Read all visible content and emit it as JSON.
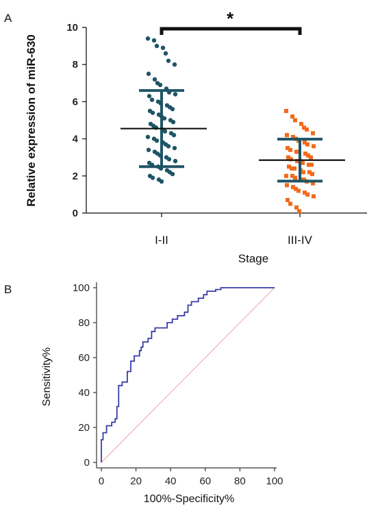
{
  "chart_data": [
    {
      "type": "scatter",
      "panel_label": "A",
      "ylabel": "Relative expression of miR-630",
      "xlabel": "Stage",
      "categories": [
        "I-II",
        "III-IV"
      ],
      "ylim": [
        0,
        10
      ],
      "yticks": [
        "0",
        "2",
        "4",
        "6",
        "8",
        "10"
      ],
      "significance": "*",
      "series": [
        {
          "category": "I-II",
          "color": "#1e5566",
          "mean": 4.55,
          "sd_upper": 6.6,
          "sd_lower": 2.5,
          "values": [
            9.4,
            9.3,
            9.0,
            8.9,
            8.6,
            8.2,
            8.0,
            7.5,
            7.2,
            7.0,
            6.9,
            6.7,
            6.5,
            6.4,
            6.3,
            6.1,
            6.0,
            5.9,
            5.8,
            5.7,
            5.6,
            5.5,
            5.4,
            5.3,
            5.2,
            5.1,
            5.0,
            4.9,
            4.8,
            4.7,
            4.6,
            4.5,
            4.4,
            4.3,
            4.2,
            4.1,
            4.0,
            3.9,
            3.8,
            3.7,
            3.6,
            3.5,
            3.4,
            3.3,
            3.2,
            3.1,
            3.0,
            2.9,
            2.8,
            2.7,
            2.6,
            2.5,
            2.4,
            2.3,
            2.2,
            2.1,
            2.0,
            1.9,
            1.8,
            1.7
          ]
        },
        {
          "category": "III-IV",
          "color": "#f26a1b",
          "mean": 2.85,
          "sd_upper": 3.98,
          "sd_lower": 1.72,
          "values": [
            5.5,
            5.2,
            5.0,
            4.8,
            4.6,
            4.5,
            4.3,
            4.2,
            4.1,
            4.0,
            3.9,
            3.8,
            3.7,
            3.6,
            3.5,
            3.4,
            3.3,
            3.3,
            3.2,
            3.1,
            3.0,
            3.0,
            2.9,
            2.8,
            2.8,
            2.7,
            2.6,
            2.6,
            2.5,
            2.4,
            2.4,
            2.3,
            2.2,
            2.2,
            2.1,
            2.0,
            2.0,
            1.9,
            1.8,
            1.8,
            1.7,
            1.6,
            1.5,
            1.4,
            1.3,
            1.2,
            1.1,
            1.0,
            0.9,
            0.7,
            0.5,
            0.3,
            0.1
          ]
        }
      ]
    },
    {
      "type": "line",
      "panel_label": "B",
      "xlabel": "100%-Specificity%",
      "ylabel": "Sensitivity%",
      "xlim": [
        0,
        100
      ],
      "ylim": [
        0,
        100
      ],
      "xticks": [
        "0",
        "20",
        "40",
        "60",
        "80",
        "100"
      ],
      "yticks": [
        "0",
        "20",
        "40",
        "60",
        "80",
        "100"
      ],
      "roc_color": "#3a3aa8",
      "reference_color": "#e8a0a8",
      "roc_points": [
        [
          0,
          0
        ],
        [
          0,
          13
        ],
        [
          1,
          13
        ],
        [
          1,
          17
        ],
        [
          3,
          17
        ],
        [
          3,
          21
        ],
        [
          6,
          21
        ],
        [
          6,
          23
        ],
        [
          8,
          23
        ],
        [
          8,
          25
        ],
        [
          9,
          25
        ],
        [
          9,
          32
        ],
        [
          10,
          32
        ],
        [
          10,
          44
        ],
        [
          12,
          44
        ],
        [
          12,
          46
        ],
        [
          15,
          46
        ],
        [
          15,
          52
        ],
        [
          17,
          52
        ],
        [
          17,
          58
        ],
        [
          19,
          58
        ],
        [
          19,
          61
        ],
        [
          22,
          61
        ],
        [
          22,
          64
        ],
        [
          23,
          64
        ],
        [
          23,
          66
        ],
        [
          24,
          66
        ],
        [
          24,
          69
        ],
        [
          27,
          69
        ],
        [
          27,
          71
        ],
        [
          29,
          71
        ],
        [
          29,
          75
        ],
        [
          31,
          75
        ],
        [
          31,
          77
        ],
        [
          38,
          77
        ],
        [
          38,
          80
        ],
        [
          41,
          80
        ],
        [
          41,
          82
        ],
        [
          44,
          82
        ],
        [
          44,
          84
        ],
        [
          48,
          84
        ],
        [
          48,
          86
        ],
        [
          50,
          86
        ],
        [
          50,
          90
        ],
        [
          52,
          90
        ],
        [
          52,
          92
        ],
        [
          56,
          92
        ],
        [
          56,
          94
        ],
        [
          59,
          94
        ],
        [
          59,
          96
        ],
        [
          61,
          96
        ],
        [
          61,
          98
        ],
        [
          66,
          98
        ],
        [
          66,
          99
        ],
        [
          69,
          99
        ],
        [
          69,
          100
        ],
        [
          100,
          100
        ]
      ]
    }
  ]
}
